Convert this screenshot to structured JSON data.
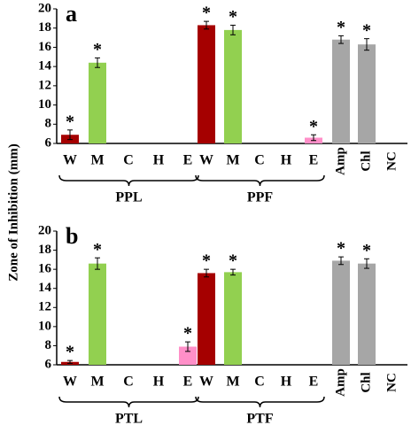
{
  "ylabel": "Zone of Inhibition (mm)",
  "chart_data": [
    {
      "type": "bar",
      "panel": "a",
      "categories": [
        "W",
        "M",
        "C",
        "H",
        "E",
        "W",
        "M",
        "C",
        "H",
        "E",
        "Amp",
        "Chl",
        "NC"
      ],
      "values": [
        6.9,
        14.4,
        null,
        null,
        null,
        18.3,
        17.8,
        null,
        null,
        6.6,
        16.8,
        16.3,
        null
      ],
      "errors": [
        0.5,
        0.5,
        null,
        null,
        null,
        0.4,
        0.5,
        null,
        null,
        0.3,
        0.4,
        0.6,
        null
      ],
      "annotations": [
        "*",
        "*",
        null,
        null,
        null,
        "*",
        "*",
        null,
        null,
        "*",
        "*",
        "*",
        null
      ],
      "colors": [
        "#a50000",
        "#92d050",
        "#92d050",
        "#92d050",
        "#ff8fc8",
        "#a50000",
        "#92d050",
        "#92d050",
        "#92d050",
        "#ff8fc8",
        "#a6a6a6",
        "#a6a6a6",
        "#a6a6a6"
      ],
      "groups": [
        {
          "label": "PPL",
          "span": [
            0,
            4
          ]
        },
        {
          "label": "PPF",
          "span": [
            5,
            9
          ]
        }
      ],
      "ylim": [
        6,
        20
      ],
      "yticks": [
        6,
        8,
        10,
        12,
        14,
        16,
        18,
        20
      ]
    },
    {
      "type": "bar",
      "panel": "b",
      "categories": [
        "W",
        "M",
        "C",
        "H",
        "E",
        "W",
        "M",
        "C",
        "H",
        "E",
        "Amp",
        "Chl",
        "NC"
      ],
      "values": [
        6.3,
        16.6,
        null,
        null,
        7.9,
        15.6,
        15.7,
        null,
        null,
        null,
        16.9,
        16.6,
        null
      ],
      "errors": [
        0.15,
        0.6,
        null,
        null,
        0.5,
        0.4,
        0.3,
        null,
        null,
        null,
        0.4,
        0.5,
        null
      ],
      "annotations": [
        "*",
        "*",
        null,
        null,
        "*",
        "*",
        "*",
        null,
        null,
        null,
        "*",
        "*",
        null
      ],
      "colors": [
        "#a50000",
        "#92d050",
        "#92d050",
        "#92d050",
        "#ff8fc8",
        "#a50000",
        "#92d050",
        "#92d050",
        "#92d050",
        "#ff8fc8",
        "#a6a6a6",
        "#a6a6a6",
        "#a6a6a6"
      ],
      "groups": [
        {
          "label": "PTL",
          "span": [
            0,
            4
          ]
        },
        {
          "label": "PTF",
          "span": [
            5,
            9
          ]
        }
      ],
      "ylim": [
        6,
        20
      ],
      "yticks": [
        6,
        8,
        10,
        12,
        14,
        16,
        18,
        20
      ]
    }
  ]
}
